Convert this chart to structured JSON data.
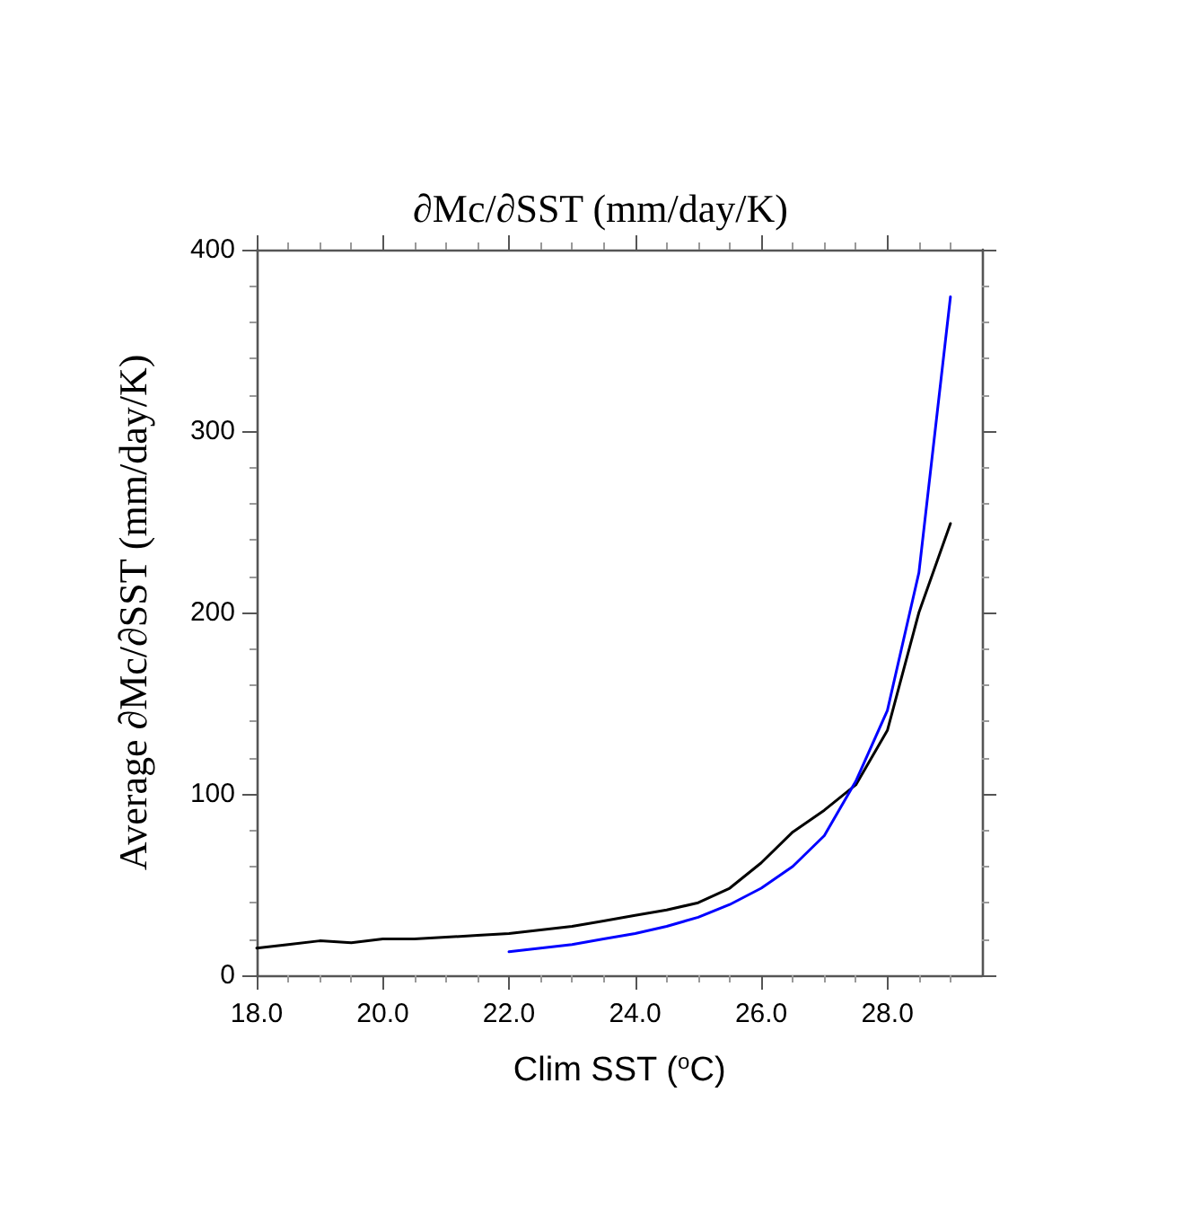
{
  "chart_data": {
    "type": "line",
    "title": "∂Mc/∂SST (mm/day/K)",
    "xlabel": "Clim SST ($^{o}$C)",
    "ylabel": "Average ∂Mc/∂SST (mm/day/K)",
    "xlim": [
      18,
      29.5
    ],
    "xticks": [
      {
        "value": 18,
        "label": "18.0"
      },
      {
        "value": 20,
        "label": "20.0"
      },
      {
        "value": 22,
        "label": "22.0"
      },
      {
        "value": 24,
        "label": "24.0"
      },
      {
        "value": 26,
        "label": "26.0"
      },
      {
        "value": 28,
        "label": "28.0"
      }
    ],
    "ylim": [
      0,
      400
    ],
    "yticks": [
      0,
      100,
      200,
      300,
      400
    ],
    "grid": false,
    "marker": "none",
    "line_style": "solid",
    "series": [
      {
        "color": "#000000",
        "x": [
          18,
          18.5,
          19,
          19.5,
          20,
          20.5,
          21,
          21.5,
          22,
          22.5,
          23,
          23.5,
          24,
          24.5,
          25,
          25.5,
          26,
          26.5,
          27,
          27.5,
          28,
          28.5,
          29
        ],
        "values": [
          15,
          17,
          19,
          18,
          20,
          20,
          21,
          22,
          23,
          25,
          27,
          30,
          33,
          36,
          40,
          48,
          62,
          79,
          91,
          105,
          135,
          200,
          249
        ]
      },
      {
        "color": "#0000ff",
        "x": [
          22,
          22.5,
          23,
          23.5,
          24,
          24.5,
          25,
          25.5,
          26,
          26.5,
          27,
          27.5,
          28,
          28.5,
          29
        ],
        "values": [
          13,
          15,
          17,
          20,
          23,
          27,
          32,
          39,
          48,
          60,
          77,
          107,
          146,
          222,
          374
        ]
      }
    ]
  }
}
